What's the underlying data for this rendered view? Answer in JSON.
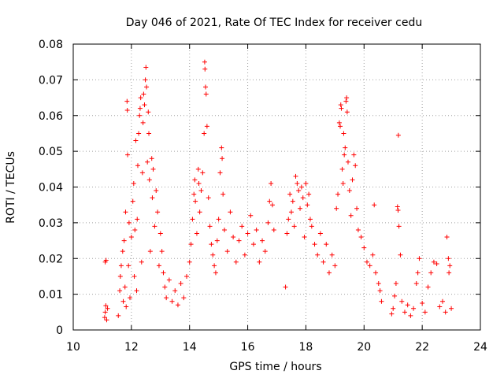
{
  "chart_data": {
    "type": "scatter",
    "title": "Day 046 of 2021, Rate Of TEC Index for receiver cedu",
    "xlabel": "GPS time / hours",
    "ylabel": "ROTI / TECUs",
    "xlim": [
      10,
      24
    ],
    "ylim": [
      0,
      0.08
    ],
    "x_ticks": [
      "10",
      "12",
      "14",
      "16",
      "18",
      "20",
      "22",
      "24"
    ],
    "y_ticks": [
      "0",
      "0.01",
      "0.02",
      "0.03",
      "0.04",
      "0.05",
      "0.06",
      "0.07",
      "0.08"
    ],
    "grid": true,
    "marker": "+",
    "color": "#ff0000",
    "series": [
      {
        "name": "ROTI",
        "points": [
          [
            11.08,
            0.0035
          ],
          [
            11.1,
            0.005
          ],
          [
            11.12,
            0.0068
          ],
          [
            11.15,
            0.0028
          ],
          [
            11.18,
            0.006
          ],
          [
            11.1,
            0.019
          ],
          [
            11.13,
            0.0195
          ],
          [
            11.55,
            0.004
          ],
          [
            11.6,
            0.011
          ],
          [
            11.62,
            0.015
          ],
          [
            11.65,
            0.018
          ],
          [
            11.7,
            0.022
          ],
          [
            11.72,
            0.008
          ],
          [
            11.75,
            0.025
          ],
          [
            11.78,
            0.012
          ],
          [
            11.8,
            0.033
          ],
          [
            11.82,
            0.0065
          ],
          [
            11.85,
            0.064
          ],
          [
            11.86,
            0.0615
          ],
          [
            11.87,
            0.049
          ],
          [
            11.9,
            0.018
          ],
          [
            11.92,
            0.03
          ],
          [
            11.95,
            0.009
          ],
          [
            12.0,
            0.026
          ],
          [
            12.05,
            0.036
          ],
          [
            12.08,
            0.041
          ],
          [
            12.1,
            0.015
          ],
          [
            12.12,
            0.028
          ],
          [
            12.15,
            0.053
          ],
          [
            12.18,
            0.011
          ],
          [
            12.2,
            0.031
          ],
          [
            12.22,
            0.046
          ],
          [
            12.25,
            0.055
          ],
          [
            12.28,
            0.06
          ],
          [
            12.3,
            0.062
          ],
          [
            12.32,
            0.065
          ],
          [
            12.35,
            0.019
          ],
          [
            12.38,
            0.044
          ],
          [
            12.4,
            0.058
          ],
          [
            12.42,
            0.066
          ],
          [
            12.45,
            0.063
          ],
          [
            12.48,
            0.07
          ],
          [
            12.5,
            0.0735
          ],
          [
            12.52,
            0.068
          ],
          [
            12.55,
            0.047
          ],
          [
            12.58,
            0.061
          ],
          [
            12.6,
            0.055
          ],
          [
            12.62,
            0.042
          ],
          [
            12.65,
            0.022
          ],
          [
            12.7,
            0.048
          ],
          [
            12.72,
            0.037
          ],
          [
            12.75,
            0.045
          ],
          [
            12.8,
            0.029
          ],
          [
            12.85,
            0.039
          ],
          [
            12.9,
            0.033
          ],
          [
            12.95,
            0.018
          ],
          [
            13.0,
            0.027
          ],
          [
            13.05,
            0.022
          ],
          [
            13.1,
            0.016
          ],
          [
            13.15,
            0.012
          ],
          [
            13.2,
            0.009
          ],
          [
            13.3,
            0.014
          ],
          [
            13.4,
            0.008
          ],
          [
            13.5,
            0.011
          ],
          [
            13.6,
            0.007
          ],
          [
            13.7,
            0.013
          ],
          [
            13.8,
            0.009
          ],
          [
            13.9,
            0.015
          ],
          [
            14.0,
            0.019
          ],
          [
            14.05,
            0.024
          ],
          [
            14.1,
            0.031
          ],
          [
            14.15,
            0.038
          ],
          [
            14.18,
            0.042
          ],
          [
            14.2,
            0.036
          ],
          [
            14.25,
            0.027
          ],
          [
            14.3,
            0.045
          ],
          [
            14.32,
            0.041
          ],
          [
            14.35,
            0.033
          ],
          [
            14.4,
            0.039
          ],
          [
            14.45,
            0.044
          ],
          [
            14.5,
            0.055
          ],
          [
            14.52,
            0.075
          ],
          [
            14.53,
            0.073
          ],
          [
            14.55,
            0.068
          ],
          [
            14.57,
            0.066
          ],
          [
            14.6,
            0.057
          ],
          [
            14.65,
            0.037
          ],
          [
            14.7,
            0.029
          ],
          [
            14.75,
            0.024
          ],
          [
            14.8,
            0.021
          ],
          [
            14.85,
            0.018
          ],
          [
            14.9,
            0.016
          ],
          [
            14.95,
            0.025
          ],
          [
            15.0,
            0.031
          ],
          [
            15.05,
            0.044
          ],
          [
            15.1,
            0.051
          ],
          [
            15.12,
            0.048
          ],
          [
            15.15,
            0.038
          ],
          [
            15.2,
            0.028
          ],
          [
            15.3,
            0.022
          ],
          [
            15.4,
            0.033
          ],
          [
            15.5,
            0.026
          ],
          [
            15.6,
            0.019
          ],
          [
            15.7,
            0.025
          ],
          [
            15.8,
            0.029
          ],
          [
            15.9,
            0.021
          ],
          [
            16.0,
            0.027
          ],
          [
            16.1,
            0.032
          ],
          [
            16.2,
            0.024
          ],
          [
            16.3,
            0.028
          ],
          [
            16.4,
            0.019
          ],
          [
            16.5,
            0.025
          ],
          [
            16.6,
            0.022
          ],
          [
            16.7,
            0.03
          ],
          [
            16.75,
            0.036
          ],
          [
            16.8,
            0.041
          ],
          [
            16.85,
            0.035
          ],
          [
            16.9,
            0.028
          ],
          [
            17.3,
            0.012
          ],
          [
            17.35,
            0.027
          ],
          [
            17.4,
            0.031
          ],
          [
            17.45,
            0.038
          ],
          [
            17.5,
            0.033
          ],
          [
            17.55,
            0.036
          ],
          [
            17.6,
            0.029
          ],
          [
            17.65,
            0.043
          ],
          [
            17.7,
            0.041
          ],
          [
            17.75,
            0.039
          ],
          [
            17.8,
            0.034
          ],
          [
            17.85,
            0.04
          ],
          [
            17.9,
            0.037
          ],
          [
            17.95,
            0.026
          ],
          [
            18.0,
            0.041
          ],
          [
            18.05,
            0.035
          ],
          [
            18.1,
            0.038
          ],
          [
            18.15,
            0.031
          ],
          [
            18.2,
            0.029
          ],
          [
            18.3,
            0.024
          ],
          [
            18.4,
            0.021
          ],
          [
            18.5,
            0.027
          ],
          [
            18.6,
            0.019
          ],
          [
            18.7,
            0.024
          ],
          [
            18.8,
            0.016
          ],
          [
            18.9,
            0.021
          ],
          [
            19.0,
            0.018
          ],
          [
            19.05,
            0.034
          ],
          [
            19.1,
            0.038
          ],
          [
            19.15,
            0.058
          ],
          [
            19.18,
            0.057
          ],
          [
            19.2,
            0.063
          ],
          [
            19.22,
            0.062
          ],
          [
            19.25,
            0.045
          ],
          [
            19.28,
            0.041
          ],
          [
            19.3,
            0.055
          ],
          [
            19.32,
            0.049
          ],
          [
            19.35,
            0.051
          ],
          [
            19.38,
            0.064
          ],
          [
            19.4,
            0.065
          ],
          [
            19.42,
            0.061
          ],
          [
            19.45,
            0.047
          ],
          [
            19.5,
            0.039
          ],
          [
            19.55,
            0.032
          ],
          [
            19.6,
            0.042
          ],
          [
            19.65,
            0.049
          ],
          [
            19.7,
            0.046
          ],
          [
            19.75,
            0.034
          ],
          [
            19.8,
            0.028
          ],
          [
            19.9,
            0.026
          ],
          [
            20.0,
            0.023
          ],
          [
            20.1,
            0.019
          ],
          [
            20.2,
            0.018
          ],
          [
            20.3,
            0.021
          ],
          [
            20.35,
            0.035
          ],
          [
            20.4,
            0.016
          ],
          [
            20.5,
            0.013
          ],
          [
            20.55,
            0.011
          ],
          [
            20.6,
            0.008
          ],
          [
            20.95,
            0.0045
          ],
          [
            21.0,
            0.006
          ],
          [
            21.05,
            0.0095
          ],
          [
            21.1,
            0.013
          ],
          [
            21.15,
            0.0345
          ],
          [
            21.17,
            0.0335
          ],
          [
            21.18,
            0.0545
          ],
          [
            21.2,
            0.029
          ],
          [
            21.25,
            0.021
          ],
          [
            21.3,
            0.008
          ],
          [
            21.4,
            0.005
          ],
          [
            21.5,
            0.007
          ],
          [
            21.6,
            0.004
          ],
          [
            21.7,
            0.006
          ],
          [
            21.8,
            0.013
          ],
          [
            21.85,
            0.016
          ],
          [
            21.9,
            0.02
          ],
          [
            22.0,
            0.0075
          ],
          [
            22.1,
            0.005
          ],
          [
            22.2,
            0.012
          ],
          [
            22.3,
            0.016
          ],
          [
            22.4,
            0.019
          ],
          [
            22.5,
            0.0185
          ],
          [
            22.6,
            0.0065
          ],
          [
            22.7,
            0.008
          ],
          [
            22.8,
            0.005
          ],
          [
            22.85,
            0.026
          ],
          [
            22.9,
            0.02
          ],
          [
            22.92,
            0.016
          ],
          [
            22.95,
            0.018
          ],
          [
            23.0,
            0.006
          ]
        ]
      }
    ]
  }
}
